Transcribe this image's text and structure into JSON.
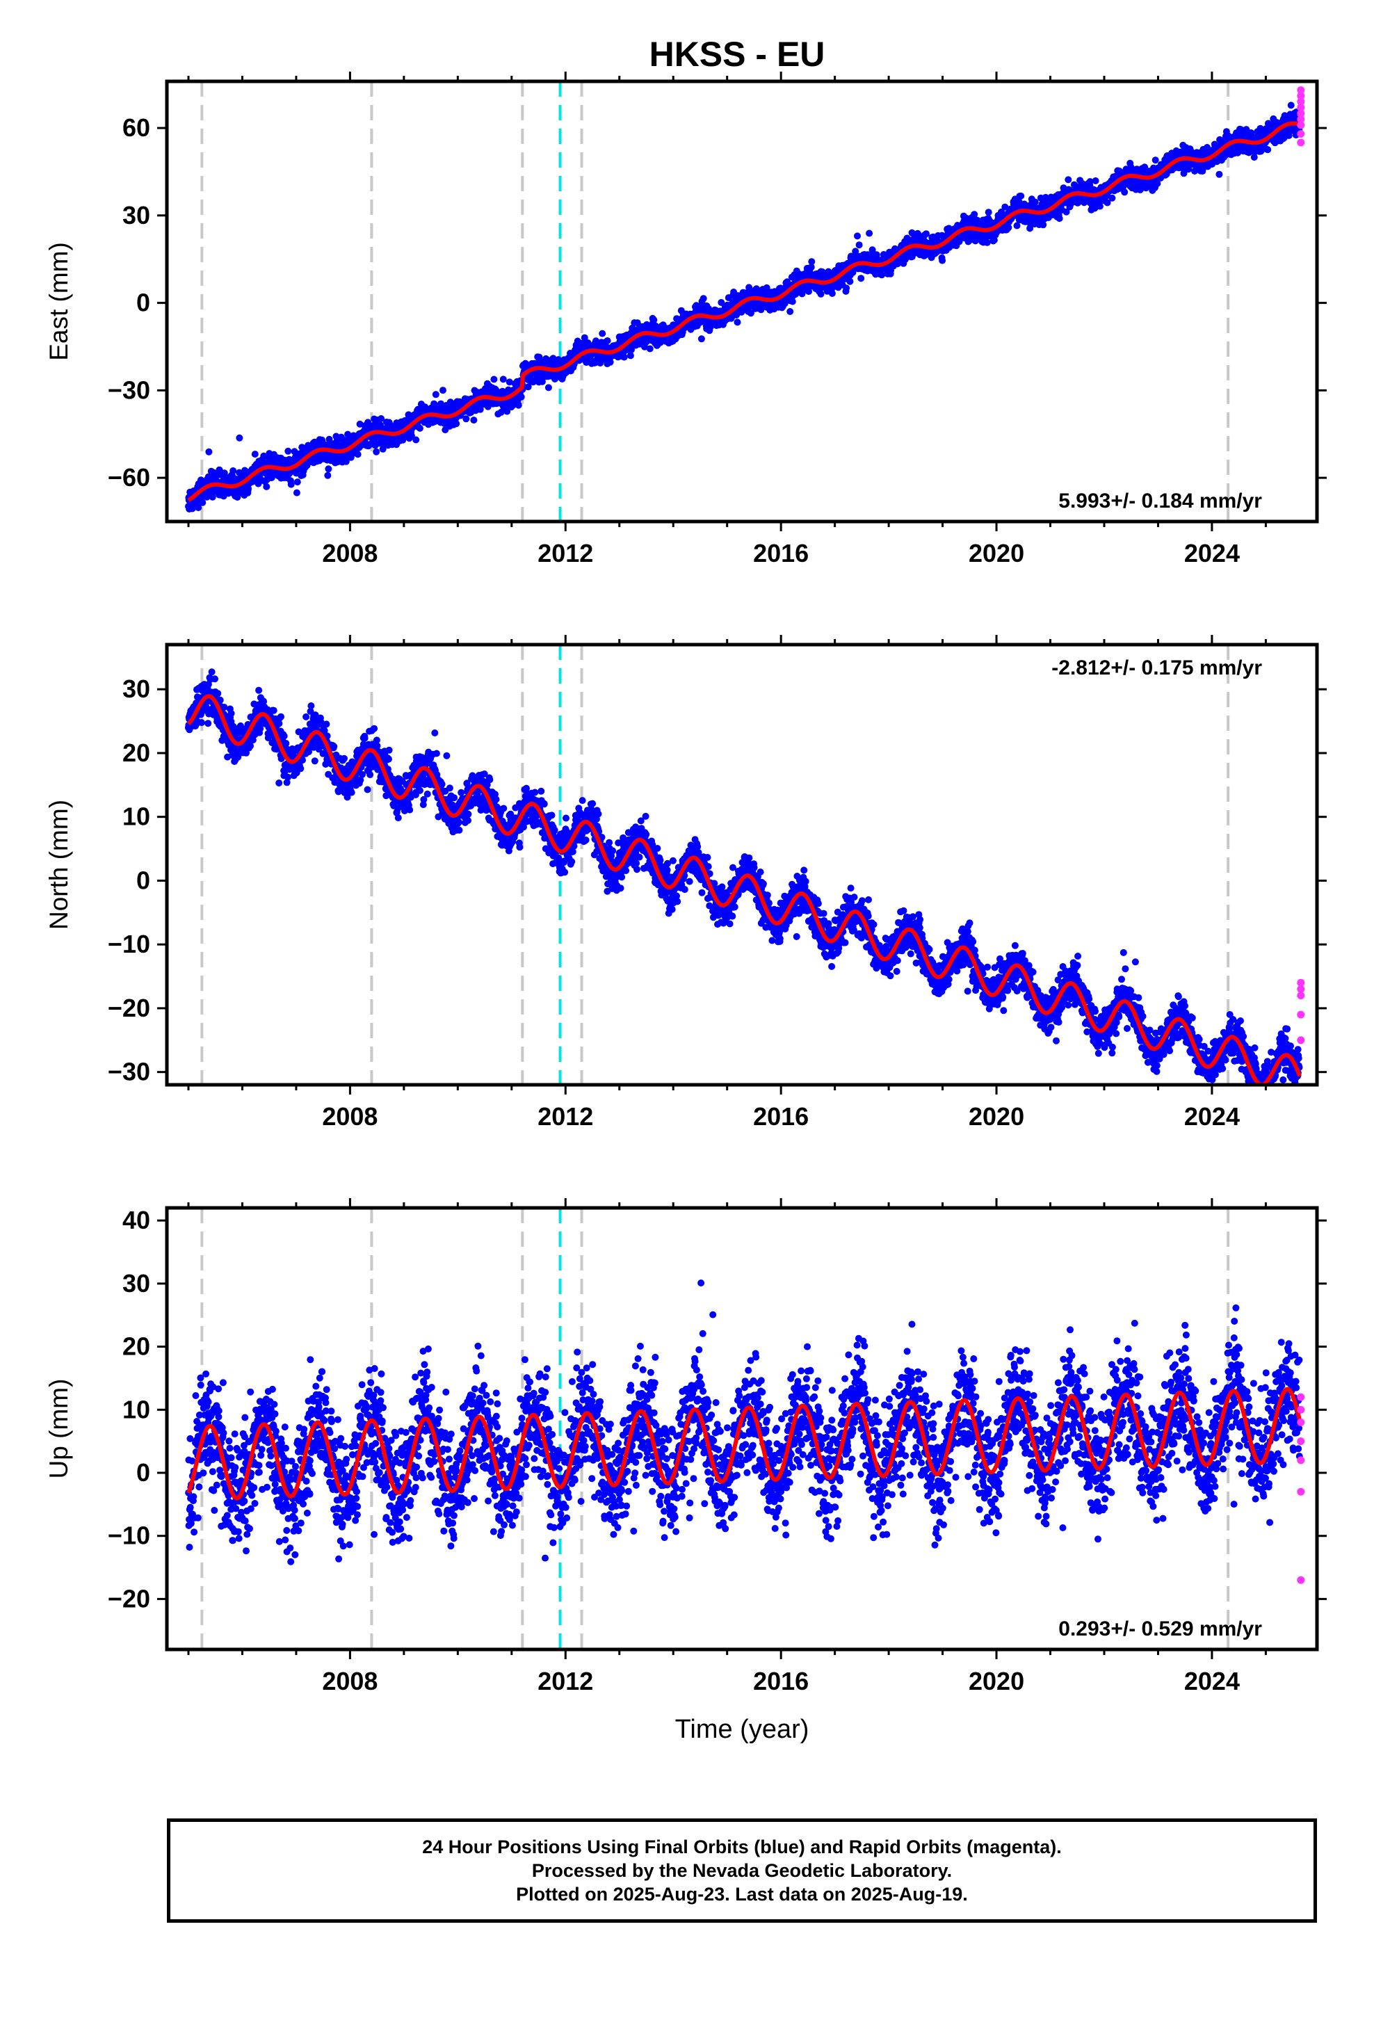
{
  "title": "HKSS - EU",
  "colors": {
    "final_orbits": "#0000ff",
    "rapid_orbits": "#ff33ff",
    "model_fit": "#ff0000",
    "equipment_change": "#c8c8c8",
    "earthquake": "#00e5e5"
  },
  "footer": {
    "line1": "24 Hour Positions Using Final Orbits (blue) and Rapid Orbits (magenta).",
    "line2": "Processed by the Nevada Geodetic Laboratory.",
    "line3": "Plotted on 2025-Aug-23. Last data on 2025-Aug-19."
  },
  "chart_data": [
    {
      "type": "scatter",
      "name": "east",
      "ylabel": "East (mm)",
      "xlabel": "",
      "xlim": [
        2004.6,
        2025.95
      ],
      "ylim": [
        -75,
        76
      ],
      "xticks": [
        2008,
        2012,
        2016,
        2020,
        2024
      ],
      "yticks": [
        -60,
        -30,
        0,
        30,
        60
      ],
      "rate_label": "5.993+/- 0.184 mm/yr",
      "rate_position": "bottom-right",
      "data_start": 2005.0,
      "data_end": 2025.63,
      "trend": {
        "ref_year": 2005.0,
        "intercept": -66.5,
        "rate": 5.993
      },
      "steps": [
        {
          "year": 2011.2,
          "size": 4
        }
      ],
      "seasonal_amplitude": 1.5,
      "scatter_sigma": 2.0,
      "rapid_values": [
        55,
        58,
        61,
        63,
        65,
        67,
        69,
        71,
        73
      ]
    },
    {
      "type": "scatter",
      "name": "north",
      "ylabel": "North (mm)",
      "xlabel": "",
      "xlim": [
        2004.6,
        2025.95
      ],
      "ylim": [
        -32,
        37
      ],
      "xticks": [
        2008,
        2012,
        2016,
        2020,
        2024
      ],
      "yticks": [
        -30,
        -20,
        -10,
        0,
        10,
        20,
        30
      ],
      "rate_label": "-2.812+/- 0.175 mm/yr",
      "rate_position": "top-right",
      "data_start": 2005.0,
      "data_end": 2025.63,
      "trend": {
        "ref_year": 2005.0,
        "intercept": 27.0,
        "rate": -2.812
      },
      "steps": [],
      "seasonal_amplitude": 3.0,
      "scatter_sigma": 1.6,
      "rapid_values": [
        -25,
        -21,
        -18,
        -17,
        -16
      ]
    },
    {
      "type": "scatter",
      "name": "up",
      "ylabel": "Up (mm)",
      "xlabel": "Time (year)",
      "xlim": [
        2004.6,
        2025.95
      ],
      "ylim": [
        -28,
        42
      ],
      "xticks": [
        2008,
        2012,
        2016,
        2020,
        2024
      ],
      "yticks": [
        -20,
        -10,
        0,
        10,
        20,
        30,
        40
      ],
      "rate_label": "0.293+/- 0.529 mm/yr",
      "rate_position": "bottom-right",
      "data_start": 2005.0,
      "data_end": 2025.63,
      "trend": {
        "ref_year": 2005.0,
        "intercept": 1.5,
        "rate": 0.293
      },
      "steps": [],
      "seasonal_amplitude": 5.8,
      "scatter_sigma": 4.5,
      "rapid_values": [
        -17,
        -3,
        2,
        5,
        8,
        10,
        12
      ]
    }
  ],
  "event_lines": {
    "equipment_change": [
      2005.25,
      2008.4,
      2011.2,
      2012.3,
      2024.3
    ],
    "earthquake": [
      2011.9
    ]
  }
}
